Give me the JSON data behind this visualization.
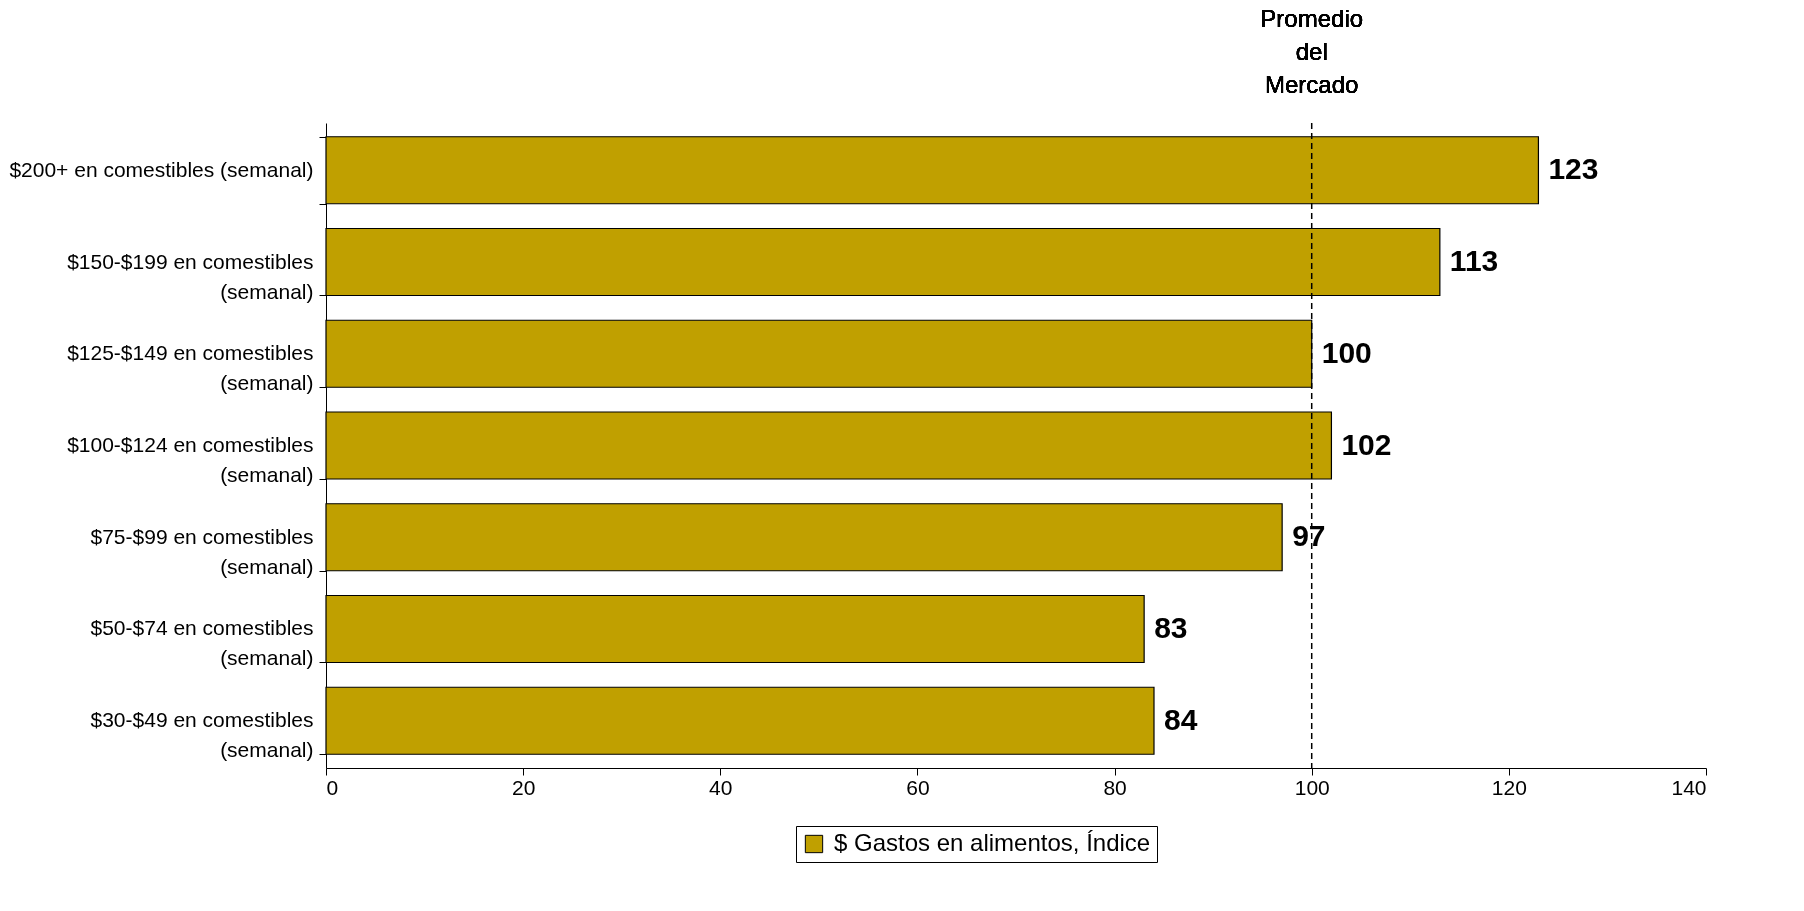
{
  "chart_data": {
    "type": "bar",
    "orientation": "horizontal",
    "categories": [
      "$200+ en comestibles (semanal)",
      "$150-$199 en comestibles (semanal)",
      "$125-$149 en comestibles (semanal)",
      "$100-$124 en comestibles (semanal)",
      "$75-$99 en comestibles (semanal)",
      "$50-$74 en comestibles (semanal)",
      "$30-$49 en comestibles (semanal)"
    ],
    "series": [
      {
        "name": "$ Gastos en alimentos, Índice",
        "color": "#c0a000",
        "values": [
          123,
          113,
          100,
          102,
          97,
          83,
          84
        ]
      }
    ],
    "xlim": [
      0,
      140
    ],
    "xticks": [
      0,
      20,
      40,
      60,
      80,
      100,
      120,
      140
    ],
    "data_labels": true,
    "grid": false,
    "legend": "bottom",
    "ref_lines": [
      {
        "axis": "x",
        "value": 100,
        "label": "Promedio del Mercado",
        "color": "#000000",
        "line_style": "dashed"
      }
    ]
  }
}
